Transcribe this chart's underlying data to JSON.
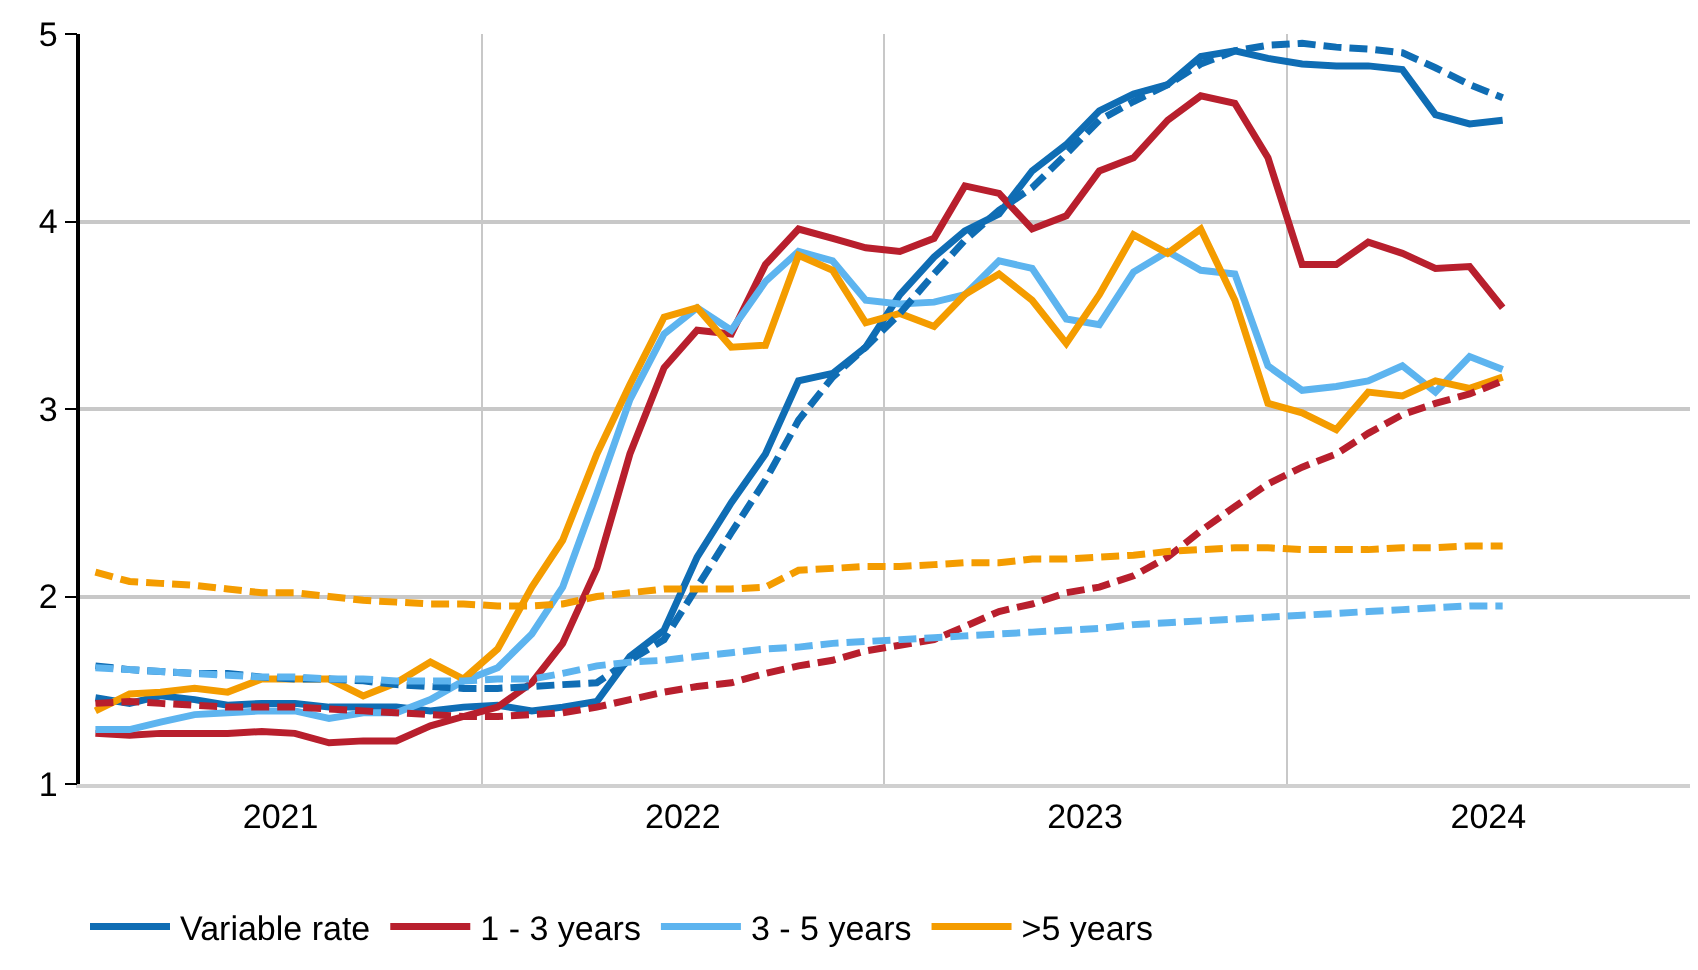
{
  "chart_data": {
    "type": "line",
    "x": [
      "2021-01-15",
      "2021-02-15",
      "2021-03-15",
      "2021-04-15",
      "2021-05-15",
      "2021-06-15",
      "2021-07-15",
      "2021-08-15",
      "2021-09-15",
      "2021-10-15",
      "2021-11-15",
      "2021-12-15",
      "2022-01-15",
      "2022-02-15",
      "2022-03-15",
      "2022-04-15",
      "2022-05-15",
      "2022-06-15",
      "2022-07-15",
      "2022-08-15",
      "2022-09-15",
      "2022-10-15",
      "2022-11-15",
      "2022-12-15",
      "2023-01-15",
      "2023-02-15",
      "2023-03-15",
      "2023-04-15",
      "2023-05-15",
      "2023-06-15",
      "2023-07-15",
      "2023-08-15",
      "2023-09-15",
      "2023-10-15",
      "2023-11-15",
      "2023-12-15",
      "2024-01-15",
      "2024-02-15",
      "2024-03-15",
      "2024-04-15",
      "2024-05-15",
      "2024-06-15",
      "2024-07-15"
    ],
    "xlim": [
      "2021-01-01",
      "2025-01-01"
    ],
    "xticks": [
      {
        "value": "2021-07-02",
        "label": "2021"
      },
      {
        "value": "2022-01-01",
        "label": null
      },
      {
        "value": "2022-07-02",
        "label": "2022"
      },
      {
        "value": "2023-01-01",
        "label": null
      },
      {
        "value": "2023-07-02",
        "label": "2023"
      },
      {
        "value": "2024-01-01",
        "label": null
      },
      {
        "value": "2024-07-02",
        "label": "2024"
      }
    ],
    "ylim": [
      1,
      5
    ],
    "yticks": [
      1,
      2,
      3,
      4,
      5
    ],
    "grid": true,
    "legend": "bottom",
    "marker": "none",
    "series": [
      {
        "name": "Variable rate",
        "color": "#0f6db4",
        "line_style": "solid",
        "values": [
          1.46,
          1.43,
          1.47,
          1.45,
          1.42,
          1.43,
          1.43,
          1.41,
          1.41,
          1.41,
          1.39,
          1.41,
          1.42,
          1.39,
          1.41,
          1.44,
          1.68,
          1.82,
          2.21,
          2.5,
          2.76,
          3.15,
          3.19,
          3.33,
          3.61,
          3.81,
          3.95,
          4.04,
          4.27,
          4.41,
          4.59,
          4.68,
          4.73,
          4.88,
          4.91,
          4.87,
          4.84,
          4.83,
          4.83,
          4.81,
          4.57,
          4.52,
          4.54
        ]
      },
      {
        "name": "1 - 3 years",
        "color": "#b81f2d",
        "line_style": "solid",
        "values": [
          1.27,
          1.26,
          1.27,
          1.27,
          1.27,
          1.28,
          1.27,
          1.22,
          1.23,
          1.23,
          1.31,
          1.36,
          1.41,
          1.54,
          1.75,
          2.15,
          2.76,
          3.22,
          3.42,
          3.4,
          3.77,
          3.96,
          3.91,
          3.86,
          3.84,
          3.91,
          4.19,
          4.15,
          3.96,
          4.03,
          4.27,
          4.34,
          4.54,
          4.67,
          4.63,
          4.34,
          3.77,
          3.77,
          3.89,
          3.83,
          3.75,
          3.76,
          3.54
        ]
      },
      {
        "name": "3 - 5 years",
        "color": "#5db4ef",
        "line_style": "solid",
        "values": [
          1.29,
          1.29,
          1.33,
          1.37,
          1.38,
          1.39,
          1.39,
          1.35,
          1.38,
          1.38,
          1.45,
          1.55,
          1.62,
          1.8,
          2.05,
          2.55,
          3.05,
          3.4,
          3.54,
          3.42,
          3.68,
          3.84,
          3.79,
          3.58,
          3.56,
          3.57,
          3.61,
          3.79,
          3.75,
          3.48,
          3.45,
          3.73,
          3.84,
          3.74,
          3.72,
          3.23,
          3.1,
          3.12,
          3.15,
          3.23,
          3.09,
          3.28,
          3.21
        ]
      },
      {
        "name": ">5 years",
        "color": "#f49c00",
        "line_style": "solid",
        "values": [
          1.39,
          1.48,
          1.49,
          1.51,
          1.49,
          1.56,
          1.56,
          1.56,
          1.47,
          1.54,
          1.65,
          1.56,
          1.72,
          2.05,
          2.3,
          2.76,
          3.13,
          3.49,
          3.54,
          3.33,
          3.34,
          3.82,
          3.74,
          3.46,
          3.51,
          3.44,
          3.61,
          3.72,
          3.58,
          3.35,
          3.61,
          3.93,
          3.83,
          3.96,
          3.58,
          3.03,
          2.98,
          2.89,
          3.09,
          3.07,
          3.15,
          3.11,
          3.17
        ]
      },
      {
        "color": "#0f6db4",
        "line_style": "dashed",
        "values": [
          1.63,
          1.61,
          1.6,
          1.59,
          1.59,
          1.57,
          1.56,
          1.56,
          1.55,
          1.53,
          1.52,
          1.51,
          1.51,
          1.52,
          1.53,
          1.54,
          1.66,
          1.77,
          2.05,
          2.34,
          2.62,
          2.94,
          3.17,
          3.33,
          3.51,
          3.72,
          3.9,
          4.06,
          4.18,
          4.36,
          4.54,
          4.64,
          4.73,
          4.84,
          4.91,
          4.94,
          4.95,
          4.93,
          4.92,
          4.9,
          4.82,
          4.73,
          4.66
        ]
      },
      {
        "color": "#b81f2d",
        "line_style": "dashed",
        "values": [
          1.43,
          1.44,
          1.43,
          1.42,
          1.41,
          1.41,
          1.41,
          1.4,
          1.39,
          1.38,
          1.37,
          1.36,
          1.36,
          1.37,
          1.38,
          1.41,
          1.45,
          1.49,
          1.52,
          1.54,
          1.59,
          1.63,
          1.66,
          1.71,
          1.74,
          1.77,
          1.84,
          1.92,
          1.96,
          2.02,
          2.05,
          2.11,
          2.21,
          2.35,
          2.48,
          2.6,
          2.69,
          2.76,
          2.87,
          2.97,
          3.03,
          3.08,
          3.15
        ]
      },
      {
        "color": "#5db4ef",
        "line_style": "dashed",
        "values": [
          1.62,
          1.61,
          1.6,
          1.59,
          1.58,
          1.57,
          1.57,
          1.56,
          1.56,
          1.55,
          1.55,
          1.55,
          1.56,
          1.56,
          1.59,
          1.63,
          1.65,
          1.66,
          1.68,
          1.7,
          1.72,
          1.73,
          1.75,
          1.76,
          1.77,
          1.78,
          1.79,
          1.8,
          1.81,
          1.82,
          1.83,
          1.85,
          1.86,
          1.87,
          1.88,
          1.89,
          1.9,
          1.91,
          1.92,
          1.93,
          1.94,
          1.95,
          1.95
        ]
      },
      {
        "color": "#f49c00",
        "line_style": "dashed",
        "values": [
          2.13,
          2.08,
          2.07,
          2.06,
          2.04,
          2.02,
          2.02,
          2.0,
          1.98,
          1.97,
          1.96,
          1.96,
          1.95,
          1.95,
          1.96,
          2.0,
          2.02,
          2.04,
          2.04,
          2.04,
          2.05,
          2.14,
          2.15,
          2.16,
          2.16,
          2.17,
          2.18,
          2.18,
          2.2,
          2.2,
          2.21,
          2.22,
          2.24,
          2.25,
          2.26,
          2.26,
          2.25,
          2.25,
          2.25,
          2.26,
          2.26,
          2.27,
          2.27
        ]
      }
    ]
  }
}
